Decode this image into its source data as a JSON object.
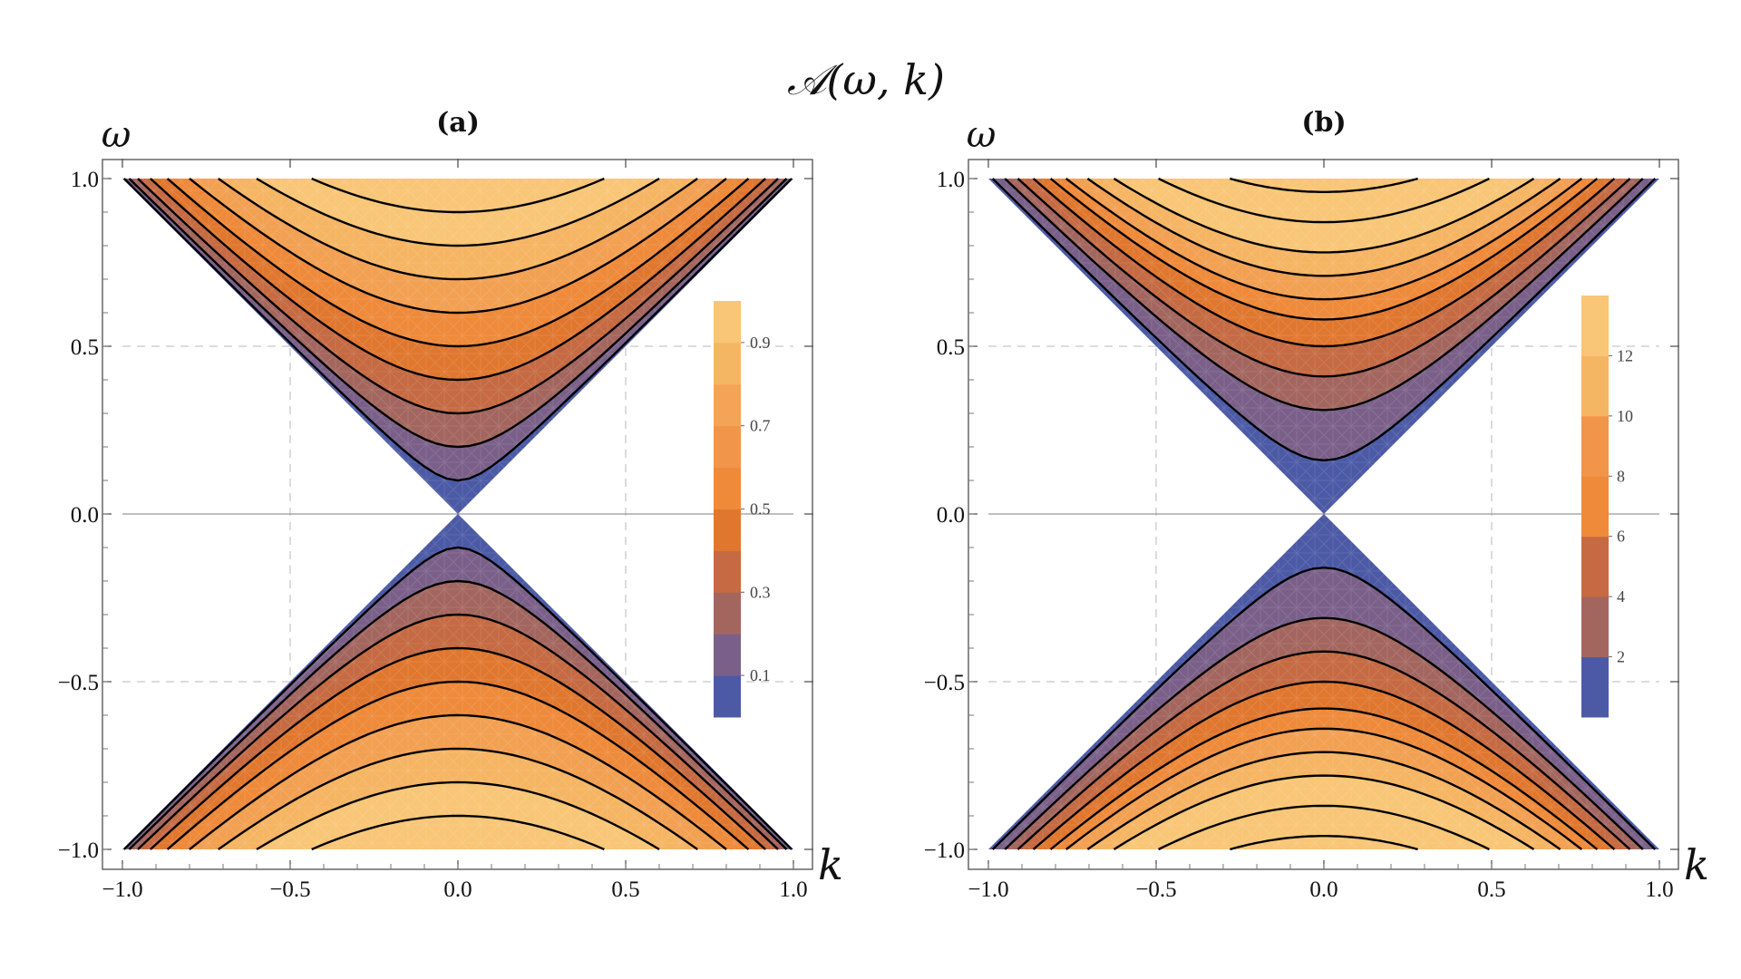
{
  "figure": {
    "title": "𝒜(ω, k)",
    "xlabel": "k",
    "ylabel": "ω"
  },
  "colors": {
    "palette": [
      "#4c5aa6",
      "#7a6089",
      "#a3665f",
      "#c56a42",
      "#e0772f",
      "#ee8a3a",
      "#f2a052",
      "#f5b563",
      "#f8c676"
    ],
    "cb_palette": [
      "#4c5aa6",
      "#7a6089",
      "#a3665f",
      "#c56a42",
      "#e0772f",
      "#ee8a3a",
      "#f0954a",
      "#f3a456",
      "#f5b663",
      "#f8c676"
    ],
    "contour": "#000000",
    "grid": "#c8c8c8"
  },
  "chart_data": [
    {
      "type": "contour",
      "panel_label": "(a)",
      "title": "(a)",
      "xlabel": "k",
      "ylabel": "ω",
      "xlim": [
        -1.0,
        1.0
      ],
      "ylim": [
        -1.0,
        1.0
      ],
      "x_ticks": [
        "−1.0",
        "−0.5",
        "0.0",
        "0.5",
        "1.0"
      ],
      "y_ticks": [
        "1.0",
        "0.5",
        "0.0",
        "−0.5",
        "−1.0"
      ],
      "region": "|ω| > |k|",
      "contour_apex_omega": [
        0.1,
        0.2,
        0.3,
        0.4,
        0.5,
        0.6,
        0.7,
        0.8,
        0.9,
        1.0
      ],
      "colorbar": {
        "ticks": [
          "0.1",
          "0.3",
          "0.5",
          "0.7",
          "0.9"
        ],
        "tick_values": [
          0.1,
          0.3,
          0.5,
          0.7,
          0.9
        ],
        "range": [
          0.0,
          1.0
        ],
        "levels": 10
      }
    },
    {
      "type": "contour",
      "panel_label": "(b)",
      "title": "(b)",
      "xlabel": "k",
      "ylabel": "ω",
      "xlim": [
        -1.0,
        1.0
      ],
      "ylim": [
        -1.0,
        1.0
      ],
      "x_ticks": [
        "−1.0",
        "−0.5",
        "0.0",
        "0.5",
        "1.0"
      ],
      "y_ticks": [
        "1.0",
        "0.5",
        "0.0",
        "−0.5",
        "−1.0"
      ],
      "region": "|ω| > |k|",
      "contour_apex_omega": [
        0.16,
        0.31,
        0.41,
        0.5,
        0.58,
        0.64,
        0.71,
        0.78,
        0.87,
        0.96
      ],
      "colorbar": {
        "ticks": [
          "2",
          "4",
          "6",
          "8",
          "10",
          "12"
        ],
        "tick_values": [
          2,
          4,
          6,
          8,
          10,
          12
        ],
        "range": [
          0.0,
          14.0
        ],
        "levels": 7
      }
    }
  ]
}
